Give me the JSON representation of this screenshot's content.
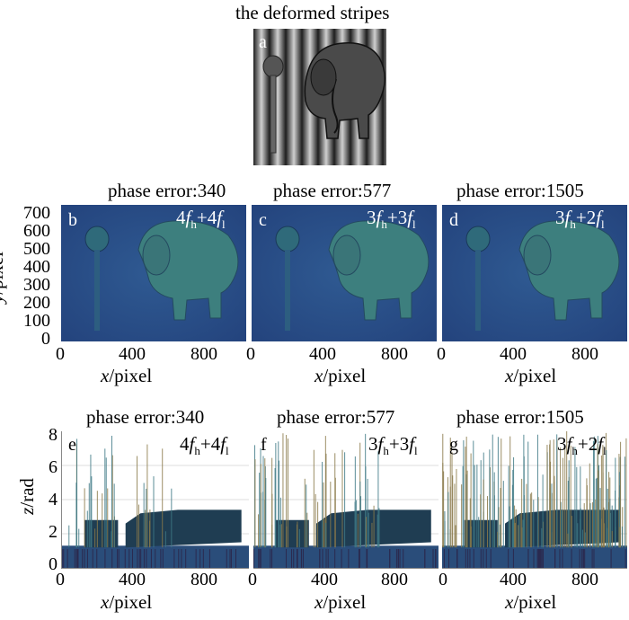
{
  "figure_a": {
    "title": "the deformed stripes",
    "label": "a"
  },
  "row2": {
    "y_label_var": "y",
    "y_label_unit": "/pixel",
    "x_label_var": "x",
    "x_label_unit": "/pixel",
    "y_ticks": [
      "700",
      "600",
      "500",
      "400",
      "300",
      "200",
      "100",
      "0"
    ],
    "x_ticks": [
      "0",
      "400",
      "800"
    ],
    "panels": [
      {
        "label": "b",
        "title": "phase error:340",
        "f_h": "4",
        "f_l": "4"
      },
      {
        "label": "c",
        "title": "phase error:577",
        "f_h": "3",
        "f_l": "3"
      },
      {
        "label": "d",
        "title": "phase error:1505",
        "f_h": "3",
        "f_l": "2"
      }
    ]
  },
  "row3": {
    "z_label_var": "z",
    "z_label_unit": "/rad",
    "x_label_var": "x",
    "x_label_unit": "/pixel",
    "z_ticks": [
      "8",
      "6",
      "4",
      "2",
      "0"
    ],
    "x_ticks": [
      "0",
      "400",
      "800"
    ],
    "panels": [
      {
        "label": "e",
        "title": "phase error:340",
        "f_h": "4",
        "f_l": "4"
      },
      {
        "label": "f",
        "title": "phase error:577",
        "f_h": "3",
        "f_l": "3"
      },
      {
        "label": "g",
        "title": "phase error:1505",
        "f_h": "3",
        "f_l": "2"
      }
    ]
  },
  "symbols": {
    "f": "f",
    "h": "h",
    "l": "l",
    "plus": "+"
  },
  "colors": {
    "map_background": "#2a4a8a",
    "map_object": "#3f7a7a",
    "surface_dark": "#1a2e4a",
    "surface_teal": "#2f6e7a",
    "spike": "#8a7a4a"
  }
}
